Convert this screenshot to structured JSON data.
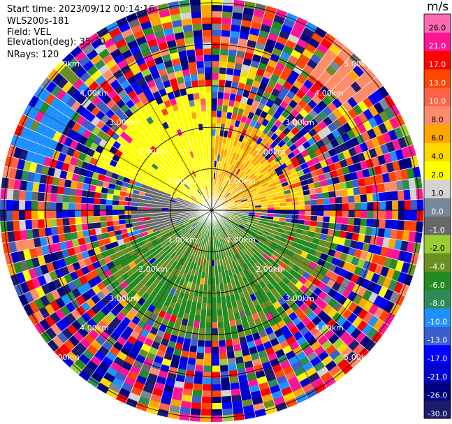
{
  "info": {
    "start_time": "Start time: 2023/09/12 00:14:16",
    "instrument": "WLS200s-181",
    "field": "Field: VEL",
    "elevation": "Elevation(deg): 35.30",
    "nrays": "NRays: 120"
  },
  "chart_data": {
    "type": "heatmap",
    "projection": "polar PPI",
    "field": "VEL",
    "units": "m/s",
    "nrays": 120,
    "elevation_deg": 35.3,
    "range_rings_km": [
      1.0,
      2.0,
      3.0,
      4.0,
      5.0
    ],
    "ring_labels": [
      "1.00km",
      "2.00km",
      "3.00km",
      "4.00km",
      "5.00km"
    ],
    "max_range_km": 5.1,
    "colorbar": {
      "title": "m/s",
      "boundaries": [
        -30.0,
        -26.0,
        -21.0,
        -17.0,
        -13.0,
        -10.0,
        -8.0,
        -6.0,
        -4.0,
        -2.0,
        -1.0,
        0.0,
        1.0,
        2.0,
        4.0,
        6.0,
        8.0,
        10.0,
        13.0,
        17.0,
        21.0,
        26.0
      ],
      "tick_labels": [
        "-30.0",
        "-26.0",
        "-21.0",
        "-17.0",
        "-13.0",
        "-10.0",
        "-8.0",
        "-6.0",
        "-4.0",
        "-2.0",
        "-1.0",
        "0.0",
        "1.0",
        "2.0",
        "4.0",
        "6.0",
        "8.0",
        "10.0",
        "13.0",
        "17.0",
        "21.0",
        "26.0"
      ],
      "colors": [
        "#1a1a6e",
        "#000080",
        "#0000cd",
        "#0000ff",
        "#3a5fcd",
        "#1e90ff",
        "#2e8b57",
        "#228b22",
        "#6b8e23",
        "#9acd32",
        "#696969",
        "#778899",
        "#d3d3d3",
        "#ffff00",
        "#ffd700",
        "#ffa500",
        "#ff8c69",
        "#ff6347",
        "#ff4500",
        "#ff0000",
        "#ff1493",
        "#ff69b4"
      ]
    },
    "velocity_sectors": [
      {
        "region": "near-range north-northeast",
        "range_km": [
          0.0,
          2.3
        ],
        "azimuth_deg": [
          0,
          90
        ],
        "velocity_ms": [
          4,
          8
        ]
      },
      {
        "region": "near-range north-northwest",
        "range_km": [
          0.0,
          3.0
        ],
        "azimuth_deg": [
          290,
          360
        ],
        "velocity_ms": [
          2,
          4
        ]
      },
      {
        "region": "near-range west",
        "range_km": [
          0.0,
          2.0
        ],
        "azimuth_deg": [
          250,
          290
        ],
        "velocity_ms": [
          -1,
          0
        ]
      },
      {
        "region": "near-range east",
        "range_km": [
          0.0,
          1.3
        ],
        "azimuth_deg": [
          80,
          100
        ],
        "velocity_ms": [
          -1,
          1
        ]
      },
      {
        "region": "near-range south",
        "range_km": [
          0.0,
          3.2
        ],
        "azimuth_deg": [
          100,
          250
        ],
        "velocity_ms": [
          -6,
          -2
        ]
      },
      {
        "region": "outer noise",
        "range_km": [
          2.3,
          5.1
        ],
        "azimuth_deg": [
          0,
          360
        ],
        "velocity_ms": [
          -30,
          26
        ]
      },
      {
        "region": "far northwest band",
        "range_km": [
          4.0,
          5.1
        ],
        "azimuth_deg": [
          285,
          305
        ],
        "velocity_ms": [
          -10,
          -8
        ]
      },
      {
        "region": "far northeast band",
        "range_km": [
          4.0,
          5.1
        ],
        "azimuth_deg": [
          35,
          55
        ],
        "velocity_ms": [
          8,
          10
        ]
      }
    ]
  }
}
